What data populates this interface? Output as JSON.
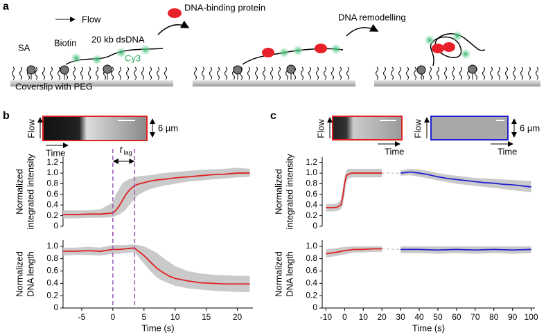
{
  "diagram": {
    "panel_a": "a",
    "panel_b": "b",
    "panel_c": "c",
    "flow": "Flow",
    "protein": "DNA-binding protein",
    "sa": "SA",
    "biotin": "Biotin",
    "dsdna": "20 kb dsDNA",
    "cy3": "Cy3",
    "coverslip": "Coverslip with PEG",
    "remodelling": "DNA remodelling",
    "kymo_b": {
      "flow": "Flow",
      "time": "Time",
      "scale": "6 µm"
    },
    "kymo_c": {
      "flow_red": "Flow",
      "time_red": "Time",
      "flow_blue": "Flow",
      "time_blue": "Time",
      "scale": "6 µm"
    }
  },
  "chart_data": [
    {
      "type": "line",
      "ylabel": [
        "Normalized",
        "integrated intensity"
      ],
      "xlim": [
        -8,
        22.5
      ],
      "ylim": [
        0,
        1.3
      ],
      "yticks": [
        0,
        0.2,
        0.4,
        0.6,
        0.8,
        {
          "value": 1,
          "label": "1.0"
        },
        1.2
      ],
      "vlines": [
        0,
        3.5
      ],
      "vline_color": "#9b59b6",
      "annotation": {
        "text": "t",
        "sub": "lag"
      },
      "series": [
        {
          "color": "#e02020",
          "band_color": "#c4c4c4",
          "x": [
            -8,
            -6,
            -4,
            -2,
            0,
            0.5,
            1,
            1.5,
            2,
            2.5,
            3,
            3.5,
            4,
            5,
            6,
            7,
            8,
            10,
            12,
            14,
            16,
            18,
            20,
            22
          ],
          "values": [
            0.22,
            0.22,
            0.23,
            0.23,
            0.25,
            0.3,
            0.38,
            0.48,
            0.58,
            0.66,
            0.72,
            0.76,
            0.79,
            0.82,
            0.85,
            0.87,
            0.88,
            0.91,
            0.93,
            0.95,
            0.97,
            0.98,
            1.0,
            1.0
          ],
          "band_high": [
            0.3,
            0.3,
            0.3,
            0.32,
            0.45,
            0.6,
            0.7,
            0.8,
            0.85,
            0.88,
            0.9,
            0.92,
            0.94,
            0.95,
            0.96,
            0.98,
            1.0,
            1.02,
            1.04,
            1.06,
            1.07,
            1.08,
            1.1,
            1.08
          ],
          "band_low": [
            0.15,
            0.15,
            0.16,
            0.16,
            0.17,
            0.2,
            0.22,
            0.26,
            0.3,
            0.38,
            0.45,
            0.52,
            0.58,
            0.65,
            0.7,
            0.73,
            0.76,
            0.8,
            0.84,
            0.86,
            0.88,
            0.9,
            0.92,
            0.93
          ]
        }
      ]
    },
    {
      "type": "line",
      "ylabel": [
        "Normalized",
        "DNA length"
      ],
      "xlabel": "Time (s)",
      "xlim": [
        -8,
        22.5
      ],
      "ylim": [
        0,
        1.1
      ],
      "yticks": [
        0,
        0.2,
        0.4,
        0.6,
        0.8,
        {
          "value": 1,
          "label": "1.0"
        }
      ],
      "xticks": [
        -5,
        0,
        5,
        10,
        15,
        20
      ],
      "vlines": [
        0,
        3.5
      ],
      "vline_color": "#9b59b6",
      "series": [
        {
          "color": "#e02020",
          "band_color": "#c4c4c4",
          "x": [
            -8,
            -6,
            -4,
            -2,
            0,
            1,
            2,
            3,
            3.5,
            4,
            5,
            6,
            7,
            8,
            9,
            10,
            12,
            14,
            16,
            18,
            20,
            22
          ],
          "values": [
            0.92,
            0.92,
            0.93,
            0.92,
            0.95,
            0.95,
            0.96,
            0.97,
            0.97,
            0.93,
            0.85,
            0.75,
            0.65,
            0.58,
            0.52,
            0.48,
            0.44,
            0.41,
            0.4,
            0.39,
            0.39,
            0.39
          ],
          "band_high": [
            0.98,
            0.98,
            0.99,
            0.98,
            1.02,
            1.02,
            1.02,
            1.03,
            1.03,
            1.02,
            1.0,
            0.95,
            0.9,
            0.82,
            0.75,
            0.68,
            0.6,
            0.56,
            0.54,
            0.53,
            0.52,
            0.52
          ],
          "band_low": [
            0.85,
            0.86,
            0.86,
            0.85,
            0.88,
            0.88,
            0.89,
            0.9,
            0.9,
            0.84,
            0.72,
            0.6,
            0.5,
            0.44,
            0.4,
            0.36,
            0.32,
            0.3,
            0.28,
            0.27,
            0.26,
            0.26
          ]
        }
      ]
    },
    {
      "type": "line",
      "ylabel": [
        "Normalized",
        "integrated intensity"
      ],
      "xlim": [
        -12,
        102
      ],
      "ylim": [
        0,
        1.3
      ],
      "yticks": [
        0,
        0.2,
        0.4,
        0.6,
        0.8,
        {
          "value": 1,
          "label": "1.0"
        },
        1.2
      ],
      "series": [
        {
          "color": "#e02020",
          "band_color": "#c4c4c4",
          "x": [
            -10,
            -8,
            -6,
            -4,
            -2,
            -1,
            0,
            1,
            2,
            4,
            6,
            8,
            10,
            15,
            20
          ],
          "values": [
            0.35,
            0.35,
            0.35,
            0.36,
            0.4,
            0.55,
            0.8,
            0.95,
            0.98,
            1.0,
            1.0,
            1.0,
            1.0,
            1.0,
            1.0
          ],
          "band_high": [
            0.42,
            0.42,
            0.42,
            0.43,
            0.5,
            0.7,
            0.95,
            1.05,
            1.08,
            1.08,
            1.08,
            1.08,
            1.08,
            1.08,
            1.08
          ],
          "band_low": [
            0.28,
            0.28,
            0.28,
            0.29,
            0.32,
            0.4,
            0.6,
            0.85,
            0.9,
            0.92,
            0.92,
            0.92,
            0.92,
            0.92,
            0.92
          ]
        },
        {
          "color": "#2020d0",
          "band_color": "#c4c4c4",
          "x": [
            30,
            35,
            40,
            45,
            50,
            55,
            60,
            65,
            70,
            75,
            80,
            85,
            90,
            95,
            100
          ],
          "values": [
            1.0,
            1.02,
            1.0,
            0.97,
            0.93,
            0.9,
            0.88,
            0.86,
            0.84,
            0.82,
            0.81,
            0.79,
            0.78,
            0.76,
            0.74
          ],
          "band_high": [
            1.05,
            1.08,
            1.07,
            1.04,
            1.0,
            0.97,
            0.95,
            0.93,
            0.91,
            0.9,
            0.89,
            0.88,
            0.87,
            0.86,
            0.85
          ],
          "band_low": [
            0.95,
            0.96,
            0.93,
            0.9,
            0.86,
            0.83,
            0.8,
            0.78,
            0.76,
            0.74,
            0.72,
            0.7,
            0.68,
            0.66,
            0.64
          ]
        }
      ]
    },
    {
      "type": "line",
      "ylabel": [
        "Normalized",
        "DNA length"
      ],
      "xlabel": "Time (s)",
      "xlim": [
        -12,
        102
      ],
      "ylim": [
        0,
        1.1
      ],
      "yticks": [
        0,
        0.2,
        0.4,
        0.6,
        0.8,
        {
          "value": 1,
          "label": "1.0"
        }
      ],
      "xticks": [
        -10,
        0,
        10,
        20,
        30,
        40,
        50,
        60,
        70,
        80,
        90,
        100
      ],
      "series": [
        {
          "color": "#e02020",
          "band_color": "#c4c4c4",
          "x": [
            -10,
            -5,
            0,
            5,
            10,
            15,
            20
          ],
          "values": [
            0.88,
            0.9,
            0.93,
            0.95,
            0.95,
            0.96,
            0.96
          ],
          "band_high": [
            0.95,
            0.97,
            0.99,
            1.0,
            1.0,
            1.0,
            1.0
          ],
          "band_low": [
            0.82,
            0.84,
            0.87,
            0.9,
            0.9,
            0.91,
            0.91
          ]
        },
        {
          "color": "#2020d0",
          "band_color": "#c4c4c4",
          "x": [
            30,
            40,
            50,
            60,
            70,
            80,
            90,
            100
          ],
          "values": [
            0.95,
            0.95,
            0.94,
            0.95,
            0.94,
            0.95,
            0.94,
            0.95
          ],
          "band_high": [
            1.0,
            1.0,
            1.0,
            1.0,
            1.0,
            1.0,
            1.0,
            1.0
          ],
          "band_low": [
            0.89,
            0.89,
            0.88,
            0.89,
            0.88,
            0.89,
            0.88,
            0.89
          ]
        }
      ]
    }
  ]
}
